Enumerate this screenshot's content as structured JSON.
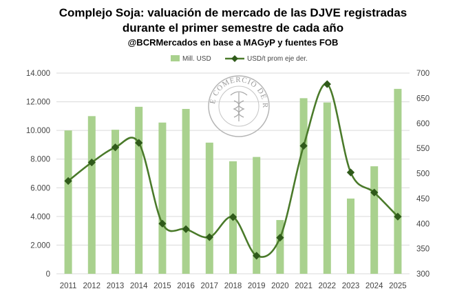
{
  "header": {
    "title_line1": "Complejo Soja: valuación de mercado de las DJVE registradas",
    "title_line2": "durante el primer semestre de cada año",
    "subtitle": "@BCRMercados en base a MAGyP y fuentes FOB"
  },
  "watermark": {
    "text": "BOLSA DE COMERCIO DE ROSARIO"
  },
  "colors": {
    "bar": "#a9d18e",
    "line": "#4a7a2a",
    "marker": "#2f5a1a",
    "grid": "#d9d9d9"
  },
  "chart_data": {
    "type": "bar",
    "categories": [
      "2011",
      "2012",
      "2013",
      "2014",
      "2015",
      "2016",
      "2017",
      "2018",
      "2019",
      "2020",
      "2021",
      "2022",
      "2023",
      "2024",
      "2025"
    ],
    "series": [
      {
        "name": "Mill. USD",
        "type": "bar",
        "axis": "left",
        "values": [
          10000,
          11000,
          10050,
          11650,
          10550,
          11500,
          9150,
          7850,
          8150,
          3750,
          12250,
          11950,
          5250,
          7500,
          12900
        ]
      },
      {
        "name": "USD/t prom eje der.",
        "type": "line",
        "axis": "right",
        "values": [
          485,
          522,
          552,
          561,
          400,
          389,
          373,
          413,
          336,
          372,
          555,
          678,
          502,
          462,
          414
        ]
      }
    ],
    "y_left": {
      "min": 0,
      "max": 14000,
      "step": 2000,
      "tick_labels": [
        "0",
        "2.000",
        "4.000",
        "6.000",
        "8.000",
        "10.000",
        "12.000",
        "14.000"
      ]
    },
    "y_right": {
      "min": 300,
      "max": 700,
      "step": 50,
      "tick_labels": [
        "300",
        "350",
        "400",
        "450",
        "500",
        "550",
        "600",
        "650",
        "700"
      ]
    },
    "grid": true,
    "legend_position": "top"
  }
}
